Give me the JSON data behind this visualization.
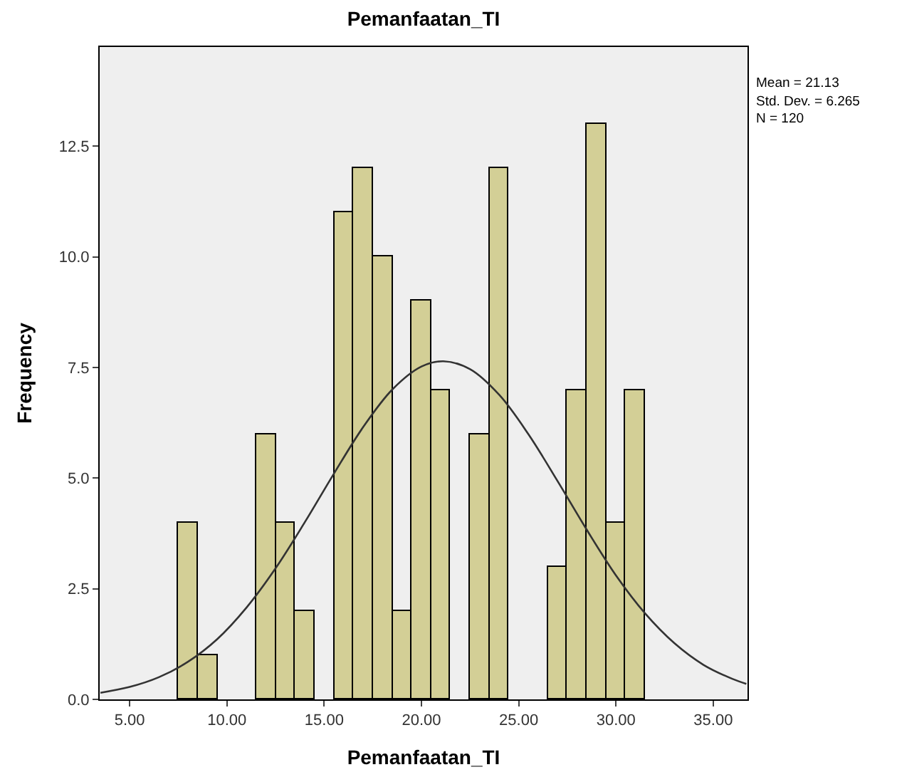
{
  "chart_data": {
    "type": "histogram",
    "title": "Pemanfaatan_TI",
    "xlabel": "Pemanfaatan_TI",
    "ylabel": "Frequency",
    "bins": [
      7.5,
      8.5,
      9.5,
      10.5,
      11.5,
      12.5,
      13.5,
      14.5,
      15.5,
      16.5,
      17.5,
      18.5,
      19.5,
      20.5,
      21.5,
      22.5,
      23.5,
      24.5,
      25.5,
      26.5,
      27.5,
      28.5,
      29.5,
      30.5,
      31.5
    ],
    "values": [
      4,
      1,
      0,
      0,
      6,
      4,
      2,
      0,
      11,
      12,
      10,
      2,
      9,
      7,
      0,
      6,
      12,
      0,
      0,
      3,
      7,
      13,
      4,
      7
    ],
    "color": "#d3cf96",
    "series": [
      {
        "type": "line",
        "color": "#333333",
        "x": [
          3.5,
          5,
          6.5,
          8,
          9.5,
          11,
          12.5,
          14,
          15.5,
          17,
          18.5,
          20,
          21.13,
          22.5,
          24,
          25.5,
          27,
          28.5,
          30,
          31.5,
          33,
          34.5,
          36,
          36.7
        ],
        "values": [
          0.15,
          0.28,
          0.5,
          0.85,
          1.36,
          2.07,
          2.96,
          4.0,
          5.1,
          6.15,
          7.0,
          7.52,
          7.64,
          7.46,
          6.88,
          5.99,
          4.93,
          3.83,
          2.8,
          1.94,
          1.27,
          0.78,
          0.46,
          0.35
        ]
      }
    ],
    "xlim": [
      3.46,
      36.76
    ],
    "xticks": [
      {
        "value": 5,
        "label": "5.00"
      },
      {
        "value": 10,
        "label": "10.00"
      },
      {
        "value": 15,
        "label": "15.00"
      },
      {
        "value": 20,
        "label": "20.00"
      },
      {
        "value": 25,
        "label": "25.00"
      },
      {
        "value": 30,
        "label": "30.00"
      },
      {
        "value": 35,
        "label": "35.00"
      }
    ],
    "ylim": [
      0,
      14.74
    ],
    "yticks": [
      {
        "value": 0,
        "label": "0.0"
      },
      {
        "value": 2.5,
        "label": "2.5"
      },
      {
        "value": 5,
        "label": "5.0"
      },
      {
        "value": 7.5,
        "label": "7.5"
      },
      {
        "value": 10,
        "label": "10.0"
      },
      {
        "value": 12.5,
        "label": "12.5"
      }
    ],
    "annotations": [
      "Mean = 21.13",
      "Std. Dev. = 6.265",
      "N = 120"
    ],
    "grid": false
  }
}
